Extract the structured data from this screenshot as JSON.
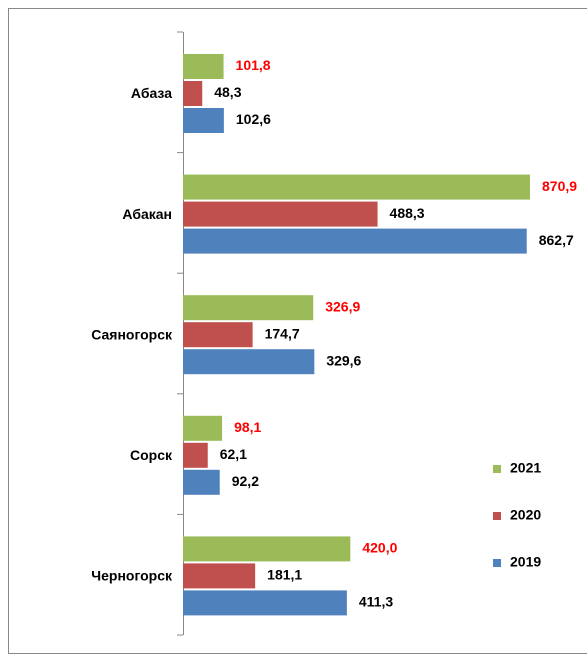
{
  "chart_data": {
    "type": "bar",
    "orientation": "horizontal",
    "categories": [
      "Абаза",
      "Абакан",
      "Саяногорск",
      "Сорск",
      "Черногорск"
    ],
    "series": [
      {
        "name": "2021",
        "color": "#9bbb59",
        "label_color": "#ff0000",
        "values": [
          101.8,
          870.9,
          326.9,
          98.1,
          420.0
        ],
        "value_labels": [
          "101,8",
          "870,9",
          "326,9",
          "98,1",
          "420,0"
        ]
      },
      {
        "name": "2020",
        "color": "#c0504d",
        "label_color": "#000000",
        "values": [
          48.3,
          488.3,
          174.7,
          62.1,
          181.1
        ],
        "value_labels": [
          "48,3",
          "488,3",
          "174,7",
          "62,1",
          "181,1"
        ]
      },
      {
        "name": "2019",
        "color": "#4f81bd",
        "label_color": "#000000",
        "values": [
          102.6,
          862.7,
          329.6,
          92.2,
          411.3
        ],
        "value_labels": [
          "102,6",
          "862,7",
          "329,6",
          "92,2",
          "411,3"
        ]
      }
    ],
    "legend": "right"
  }
}
